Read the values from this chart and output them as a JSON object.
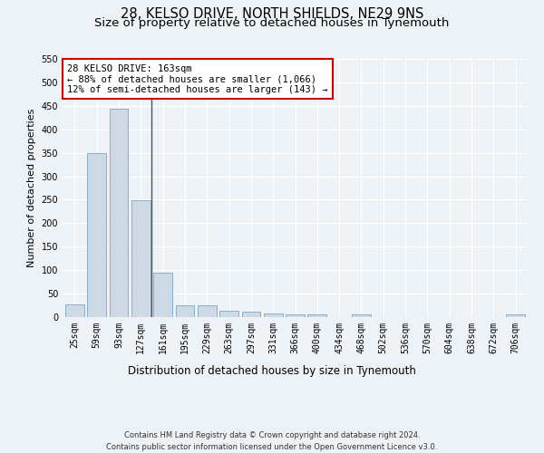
{
  "title": "28, KELSO DRIVE, NORTH SHIELDS, NE29 9NS",
  "subtitle": "Size of property relative to detached houses in Tynemouth",
  "xlabel": "Distribution of detached houses by size in Tynemouth",
  "ylabel": "Number of detached properties",
  "categories": [
    "25sqm",
    "59sqm",
    "93sqm",
    "127sqm",
    "161sqm",
    "195sqm",
    "229sqm",
    "263sqm",
    "297sqm",
    "331sqm",
    "366sqm",
    "400sqm",
    "434sqm",
    "468sqm",
    "502sqm",
    "536sqm",
    "570sqm",
    "604sqm",
    "638sqm",
    "672sqm",
    "706sqm"
  ],
  "values": [
    27,
    350,
    443,
    248,
    95,
    25,
    25,
    13,
    11,
    8,
    6,
    5,
    0,
    5,
    0,
    0,
    0,
    0,
    0,
    0,
    5
  ],
  "bar_color": "#cdd9e5",
  "bar_edge_color": "#8aafc8",
  "vline_x": 3.5,
  "vline_color": "#555555",
  "annotation_text": "28 KELSO DRIVE: 163sqm\n← 88% of detached houses are smaller (1,066)\n12% of semi-detached houses are larger (143) →",
  "annotation_box_facecolor": "#ffffff",
  "annotation_box_edgecolor": "#cc0000",
  "ylim": [
    0,
    550
  ],
  "yticks": [
    0,
    50,
    100,
    150,
    200,
    250,
    300,
    350,
    400,
    450,
    500,
    550
  ],
  "footer_line1": "Contains HM Land Registry data © Crown copyright and database right 2024.",
  "footer_line2": "Contains public sector information licensed under the Open Government Licence v3.0.",
  "bg_color": "#edf2f7",
  "grid_color": "#ffffff",
  "title_fontsize": 10.5,
  "subtitle_fontsize": 9.5,
  "tick_label_fontsize": 7,
  "ylabel_fontsize": 8,
  "xlabel_fontsize": 8.5,
  "annotation_fontsize": 7.5,
  "footer_fontsize": 6
}
